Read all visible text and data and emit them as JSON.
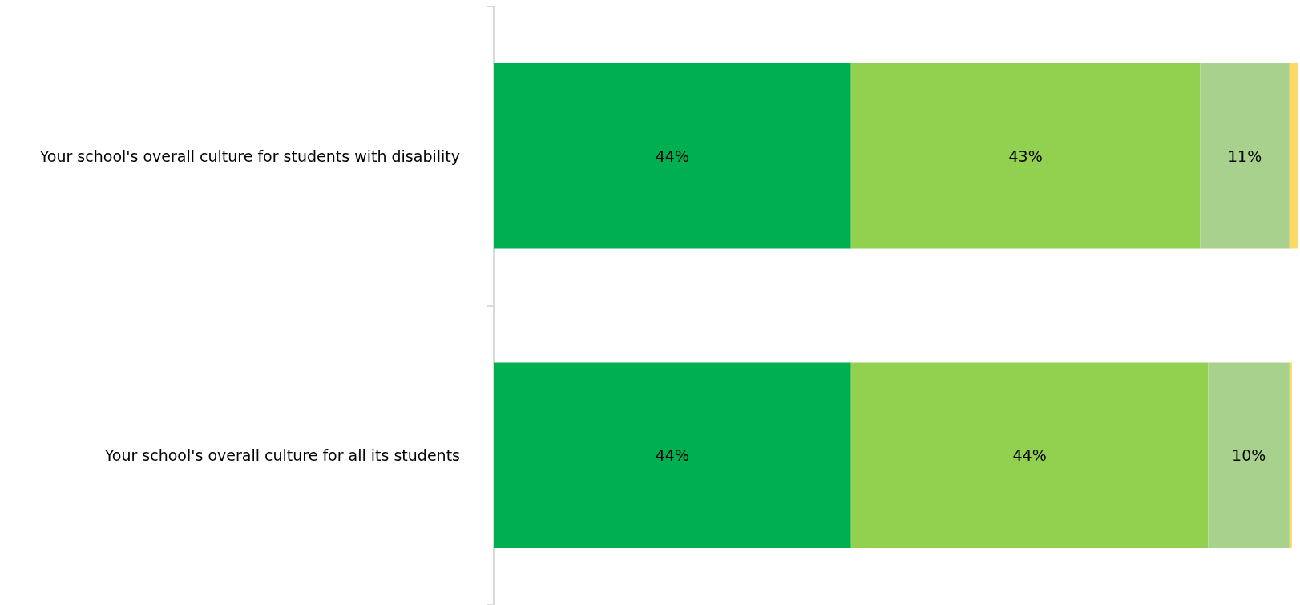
{
  "chart_data": {
    "type": "bar",
    "orientation": "horizontal",
    "stacked": true,
    "categories": [
      "Your school's overall culture for students with disability",
      "Your school's overall culture for all its students"
    ],
    "series": [
      {
        "color": "#00b050",
        "values": [
          44,
          44
        ],
        "value_labels": [
          "44%",
          "44%"
        ]
      },
      {
        "color": "#92d050",
        "values": [
          43,
          44
        ],
        "value_labels": [
          "43%",
          "44%"
        ]
      },
      {
        "color": "#a9d18e",
        "values": [
          11,
          10
        ],
        "value_labels": [
          "11%",
          "10%"
        ]
      },
      {
        "color": "#ffd966",
        "values": [
          1,
          0.3
        ]
      }
    ],
    "xlim": [
      0,
      99.3
    ],
    "tick_labels": "y"
  }
}
